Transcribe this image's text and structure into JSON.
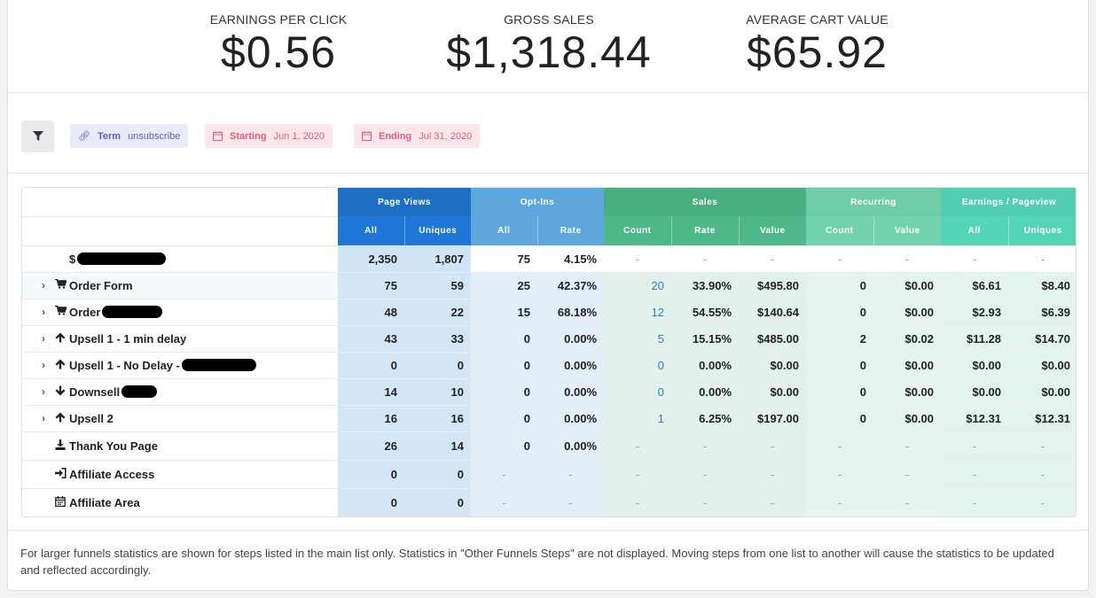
{
  "stats": [
    {
      "label": "EARNINGS PER CLICK",
      "value": "$0.56"
    },
    {
      "label": "GROSS SALES",
      "value": "$1,318.44"
    },
    {
      "label": "AVERAGE CART VALUE",
      "value": "$65.92"
    }
  ],
  "filters": {
    "term": {
      "key": "Term",
      "value": "unsubscribe",
      "icon": "link-icon"
    },
    "start": {
      "key": "Starting",
      "value": "Jun 1, 2020",
      "icon": "calendar-icon"
    },
    "end": {
      "key": "Ending",
      "value": "Jul 31, 2020",
      "icon": "calendar-icon"
    }
  },
  "table": {
    "groups": [
      "Page Views",
      "Opt-Ins",
      "Sales",
      "Recurring",
      "Earnings / Pageview"
    ],
    "subheaders": [
      "All",
      "Uniques",
      "All",
      "Rate",
      "Count",
      "Rate",
      "Value",
      "Count",
      "Value",
      "All",
      "Uniques"
    ],
    "rows": [
      {
        "name": "$",
        "icon": "",
        "expandable": false,
        "cells": [
          "2,350",
          "1,807",
          "75",
          "4.15%",
          "-",
          "-",
          "-",
          "-",
          "-",
          "-",
          "-"
        ]
      },
      {
        "name": "Order Form",
        "icon": "cart-icon",
        "expandable": true,
        "cells": [
          "75",
          "59",
          "25",
          "42.37%",
          "20",
          "33.90%",
          "$495.80",
          "0",
          "$0.00",
          "$6.61",
          "$8.40"
        ]
      },
      {
        "name": "Order",
        "icon": "cart-icon",
        "expandable": true,
        "cells": [
          "48",
          "22",
          "15",
          "68.18%",
          "12",
          "54.55%",
          "$140.64",
          "0",
          "$0.00",
          "$2.93",
          "$6.39"
        ]
      },
      {
        "name": "Upsell 1 - 1 min delay",
        "icon": "arrow-up-icon",
        "expandable": true,
        "cells": [
          "43",
          "33",
          "0",
          "0.00%",
          "5",
          "15.15%",
          "$485.00",
          "2",
          "$0.02",
          "$11.28",
          "$14.70"
        ]
      },
      {
        "name": "Upsell 1 - No Delay -",
        "icon": "arrow-up-icon",
        "expandable": true,
        "cells": [
          "0",
          "0",
          "0",
          "0.00%",
          "0",
          "0.00%",
          "$0.00",
          "0",
          "$0.00",
          "$0.00",
          "$0.00"
        ]
      },
      {
        "name": "Downsell",
        "icon": "arrow-down-icon",
        "expandable": true,
        "cells": [
          "14",
          "10",
          "0",
          "0.00%",
          "0",
          "0.00%",
          "$0.00",
          "0",
          "$0.00",
          "$0.00",
          "$0.00"
        ]
      },
      {
        "name": "Upsell 2",
        "icon": "arrow-up-icon",
        "expandable": true,
        "cells": [
          "16",
          "16",
          "0",
          "0.00%",
          "1",
          "6.25%",
          "$197.00",
          "0",
          "$0.00",
          "$12.31",
          "$12.31"
        ]
      },
      {
        "name": "Thank You Page",
        "icon": "download-icon",
        "expandable": false,
        "cells": [
          "26",
          "14",
          "0",
          "0.00%",
          "-",
          "-",
          "-",
          "-",
          "-",
          "-",
          "-"
        ]
      },
      {
        "name": "Affiliate Access",
        "icon": "sign-in-icon",
        "expandable": false,
        "cells": [
          "0",
          "0",
          "-",
          "-",
          "-",
          "-",
          "-",
          "-",
          "-",
          "-",
          "-"
        ]
      },
      {
        "name": "Affiliate Area",
        "icon": "calendar-icon",
        "expandable": false,
        "cells": [
          "0",
          "0",
          "-",
          "-",
          "-",
          "-",
          "-",
          "-",
          "-",
          "-",
          "-"
        ]
      }
    ]
  },
  "footer": "For larger funnels statistics are shown for steps listed in the main list only. Statistics in \"Other Funnels Steps\" are not displayed. Moving steps from one list to another will cause the statistics to be updated and reflected accordingly."
}
